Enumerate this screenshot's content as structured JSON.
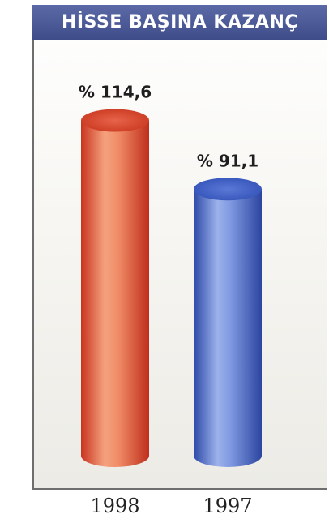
{
  "chart_data": {
    "type": "bar",
    "title": "HİSSE BAŞINA KAZANÇ",
    "categories": [
      "1998",
      "1997"
    ],
    "values": [
      114.6,
      91.1
    ],
    "value_labels": [
      "% 114,6",
      "% 91,1"
    ],
    "colors": [
      "#d9442e",
      "#3b5cc4"
    ],
    "ylim": [
      0,
      125
    ],
    "grid": false,
    "legend": "none"
  }
}
